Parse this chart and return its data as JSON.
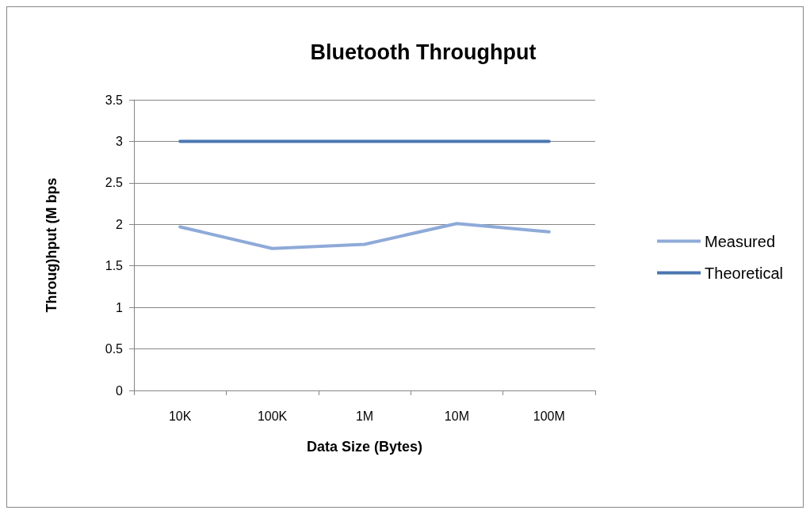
{
  "chart_data": {
    "type": "line",
    "title": "Bluetooth Throughput",
    "xlabel": "Data Size (Bytes)",
    "ylabel": "Throug)hput (M bps",
    "categories": [
      "10K",
      "100K",
      "1M",
      "10M",
      "100M"
    ],
    "series": [
      {
        "name": "Measured",
        "color": "#8eaad8",
        "values": [
          1.97,
          1.71,
          1.76,
          2.01,
          1.91
        ]
      },
      {
        "name": "Theoretical",
        "color": "#4a77b0",
        "values": [
          3,
          3,
          3,
          3,
          3
        ]
      }
    ],
    "ylim": [
      0,
      3.5
    ],
    "yticks": [
      0,
      0.5,
      1,
      1.5,
      2,
      2.5,
      3,
      3.5
    ],
    "grid": "y",
    "legend": "right",
    "marker": "none",
    "line_style": "solid"
  }
}
